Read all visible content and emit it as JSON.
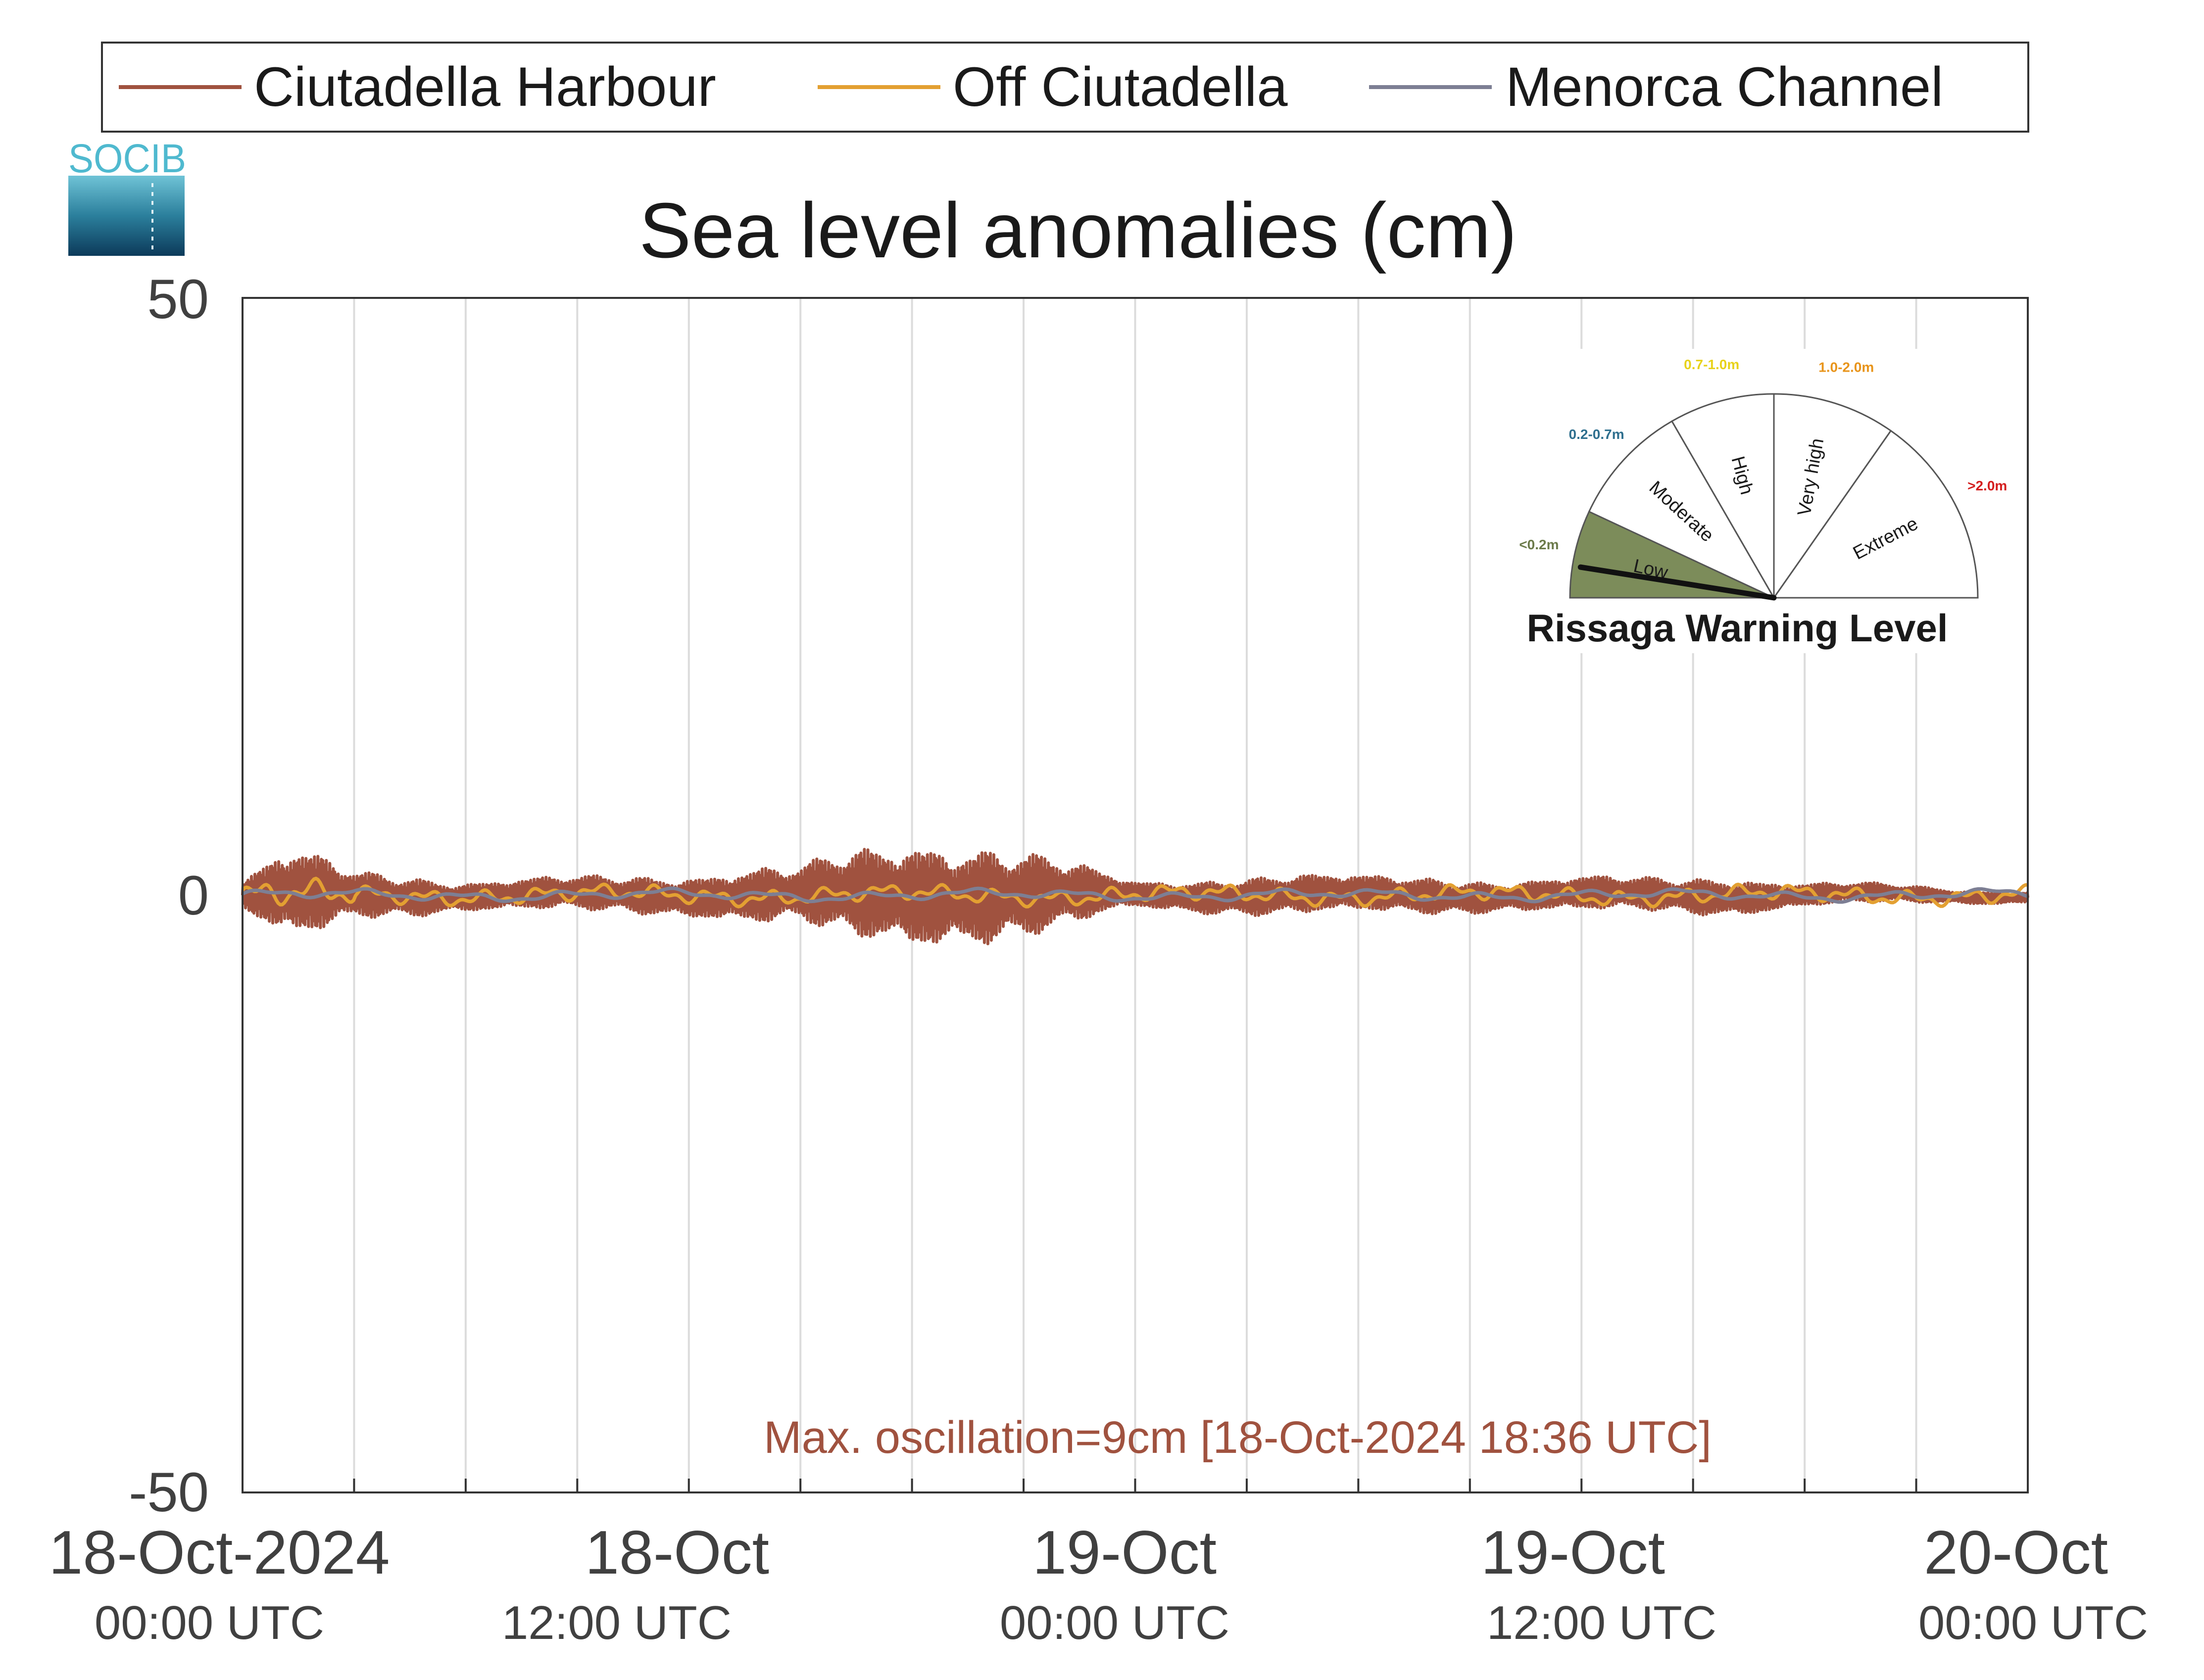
{
  "chart_data": {
    "type": "line",
    "title": "Sea level anomalies (cm)",
    "ylim": [
      -50,
      50
    ],
    "yticks": [
      "-50",
      "0",
      "50"
    ],
    "xlim_hours": [
      0,
      48
    ],
    "x_ticks": [
      {
        "date": "18-Oct-2024",
        "time": "00:00 UTC",
        "hour": 0
      },
      {
        "date": "18-Oct",
        "time": "12:00 UTC",
        "hour": 12
      },
      {
        "date": "19-Oct",
        "time": "00:00 UTC",
        "hour": 24
      },
      {
        "date": "19-Oct",
        "time": "12:00 UTC",
        "hour": 36
      },
      {
        "date": "20-Oct",
        "time": "00:00 UTC",
        "hour": 48
      }
    ],
    "grid": "vertical every 3 hours",
    "legend_position": "top",
    "series": [
      {
        "name": "Ciutadella Harbour",
        "color": "#a0523f",
        "style": "high-frequency oscillation",
        "envelope_hours": [
          0,
          1,
          2,
          3,
          4,
          6,
          8,
          10,
          12,
          14,
          15,
          16,
          17,
          18,
          18.6,
          19,
          20,
          22,
          23,
          24,
          26,
          28,
          30,
          32,
          34,
          36,
          38,
          40,
          42,
          44,
          46,
          48
        ],
        "envelope_amplitude_cm": [
          1.0,
          3.8,
          3.5,
          2.0,
          1.8,
          1.2,
          1.4,
          1.5,
          1.7,
          2.4,
          2.3,
          3.5,
          4.0,
          4.3,
          4.5,
          4.0,
          4.1,
          3.0,
          2.0,
          1.1,
          1.4,
          1.7,
          1.6,
          1.5,
          1.2,
          1.5,
          1.4,
          1.6,
          1.0,
          0.8,
          0.6,
          0.5
        ]
      },
      {
        "name": "Off Ciutadella",
        "color": "#e3a032",
        "style": "small oscillation",
        "amplitude_cm": 0.7
      },
      {
        "name": "Menorca Channel",
        "color": "#7d7f94",
        "style": "smooth low-amplitude",
        "amplitude_cm": 0.4
      }
    ],
    "annotation": {
      "text": "Max. oscillation=9cm [18-Oct-2024 18:36 UTC]",
      "color": "#a0523f"
    }
  },
  "logo": {
    "text": "SOCIB"
  },
  "gauge": {
    "title": "Rissaga Warning Level",
    "current_level": "Low",
    "needle_position": 0.05,
    "categories": [
      {
        "label": "Low",
        "range": "<0.2m",
        "range_color": "#6b7a4a",
        "fill": "#7c8c5a"
      },
      {
        "label": "Moderate",
        "range": "0.2-0.7m",
        "range_color": "#2e6f8e",
        "fill": "#ffffff"
      },
      {
        "label": "High",
        "range": "0.7-1.0m",
        "range_color": "#e8d21a",
        "fill": "#ffffff"
      },
      {
        "label": "Very high",
        "range": "1.0-2.0m",
        "range_color": "#e8941a",
        "fill": "#ffffff"
      },
      {
        "label": "Extreme",
        "range": ">2.0m",
        "range_color": "#d41e1e",
        "fill": "#ffffff"
      }
    ]
  }
}
